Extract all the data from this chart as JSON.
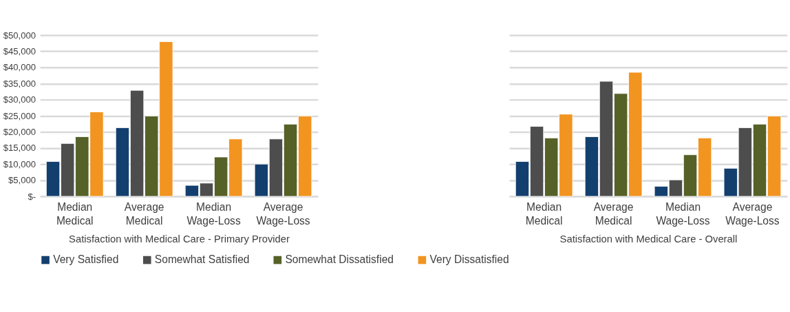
{
  "chart_data": [
    {
      "type": "bar",
      "xlabel": "Satisfaction with Medical Care - Primary Provider",
      "categories": [
        "Median Medical",
        "Average Medical",
        "Median Wage-Loss",
        "Average Wage-Loss"
      ],
      "series": [
        {
          "name": "Very Satisfied",
          "color": "#133f6e",
          "values": [
            10800,
            21300,
            3400,
            10000
          ]
        },
        {
          "name": "Somewhat Satisfied",
          "color": "#4d4d4d",
          "values": [
            16400,
            32900,
            4100,
            17800
          ]
        },
        {
          "name": "Somewhat Dissatisfied",
          "color": "#556127",
          "values": [
            18500,
            24900,
            12200,
            22400
          ]
        },
        {
          "name": "Very Dissatisfied",
          "color": "#f29420",
          "values": [
            26200,
            48000,
            17800,
            24900
          ]
        }
      ],
      "ylim": [
        0,
        50000
      ],
      "yticks": [
        {
          "value": 0,
          "label": "$-"
        },
        {
          "value": 5000,
          "label": "$5,000"
        },
        {
          "value": 10000,
          "label": "$10,000"
        },
        {
          "value": 15000,
          "label": "$15,000"
        },
        {
          "value": 20000,
          "label": "$20,000"
        },
        {
          "value": 25000,
          "label": "$25,000"
        },
        {
          "value": 30000,
          "label": "$30,000"
        },
        {
          "value": 35000,
          "label": "$35,000"
        },
        {
          "value": 40000,
          "label": "$40,000"
        },
        {
          "value": 45000,
          "label": "$45,000"
        },
        {
          "value": 50000,
          "label": "$50,000"
        }
      ],
      "grid": "y",
      "legend": "bottom"
    },
    {
      "type": "bar",
      "xlabel": "Satisfaction with Medical Care - Overall",
      "categories": [
        "Median Medical",
        "Average Medical",
        "Median Wage-Loss",
        "Average Wage-Loss"
      ],
      "series": [
        {
          "color": "#133f6e",
          "values": [
            10800,
            18500,
            3100,
            8700
          ]
        },
        {
          "color": "#4d4d4d",
          "values": [
            21700,
            35700,
            5100,
            21300
          ]
        },
        {
          "color": "#556127",
          "values": [
            18100,
            31900,
            12900,
            22400
          ]
        },
        {
          "color": "#f29420",
          "values": [
            25500,
            38500,
            18100,
            24900
          ]
        }
      ],
      "ylim": [
        0,
        50000
      ],
      "yticks": [
        0,
        5000,
        10000,
        15000,
        20000,
        25000,
        30000,
        35000,
        40000,
        45000,
        50000
      ],
      "grid": "y",
      "tick_labels": "x"
    }
  ]
}
